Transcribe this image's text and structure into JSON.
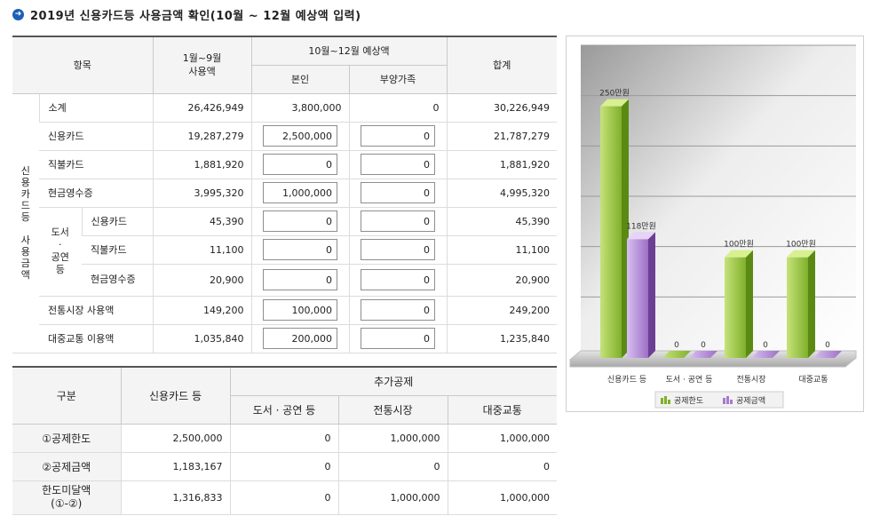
{
  "title": "2019년 신용카드등 사용금액 확인(10월 ~ 12월 예상액 입력)",
  "usage_table": {
    "headers": {
      "item": "항목",
      "jan_sep": "1월~9월\n사용액",
      "forecast": "10월~12월 예상액",
      "self": "본인",
      "dependents": "부양가족",
      "total": "합계"
    },
    "group_label": "신용카드등 사용금액",
    "culture_label": "도서·공연등",
    "rows": [
      {
        "label": "소계",
        "jan_sep": "26,426,949",
        "self": "3,800,000",
        "dep": "0",
        "total": "30,226,949"
      },
      {
        "label": "신용카드",
        "jan_sep": "19,287,279",
        "self": "2,500,000",
        "dep": "0",
        "total": "21,787,279"
      },
      {
        "label": "직불카드",
        "jan_sep": "1,881,920",
        "self": "0",
        "dep": "0",
        "total": "1,881,920"
      },
      {
        "label": "현금영수증",
        "jan_sep": "3,995,320",
        "self": "1,000,000",
        "dep": "0",
        "total": "4,995,320"
      },
      {
        "label": "신용카드",
        "jan_sep": "45,390",
        "self": "0",
        "dep": "0",
        "total": "45,390"
      },
      {
        "label": "직불카드",
        "jan_sep": "11,100",
        "self": "0",
        "dep": "0",
        "total": "11,100"
      },
      {
        "label": "현금영수증",
        "jan_sep": "20,900",
        "self": "0",
        "dep": "0",
        "total": "20,900"
      },
      {
        "label": "전통시장 사용액",
        "jan_sep": "149,200",
        "self": "100,000",
        "dep": "0",
        "total": "249,200"
      },
      {
        "label": "대중교통 이용액",
        "jan_sep": "1,035,840",
        "self": "200,000",
        "dep": "0",
        "total": "1,235,840"
      }
    ]
  },
  "deduction_table": {
    "headers": {
      "category": "구분",
      "credit": "신용카드 등",
      "extra": "추가공제",
      "culture": "도서 · 공연 등",
      "market": "전통시장",
      "transit": "대중교통"
    },
    "rows": [
      {
        "label": "①공제한도",
        "credit": "2,500,000",
        "culture": "0",
        "market": "1,000,000",
        "transit": "1,000,000"
      },
      {
        "label": "②공제금액",
        "credit": "1,183,167",
        "culture": "0",
        "market": "0",
        "transit": "0"
      },
      {
        "label": "한도미달액\n(①-②)",
        "credit": "1,316,833",
        "culture": "0",
        "market": "1,000,000",
        "transit": "1,000,000"
      }
    ]
  },
  "chart_data": {
    "type": "bar",
    "categories": [
      "신용카드 등",
      "도서 · 공연 등",
      "전통시장",
      "대중교통"
    ],
    "series": [
      {
        "name": "공제한도",
        "values": [
          250,
          0,
          100,
          100
        ],
        "labels": [
          "250만원",
          "0",
          "100만원",
          "100만원"
        ],
        "color": "#7fb02a"
      },
      {
        "name": "공제금액",
        "values": [
          118,
          0,
          0,
          0
        ],
        "labels": [
          "118만원",
          "0",
          "0",
          "0"
        ],
        "color": "#a77bcc"
      }
    ],
    "ylim": [
      0,
      300
    ],
    "grid": true,
    "legend": "bottom"
  }
}
